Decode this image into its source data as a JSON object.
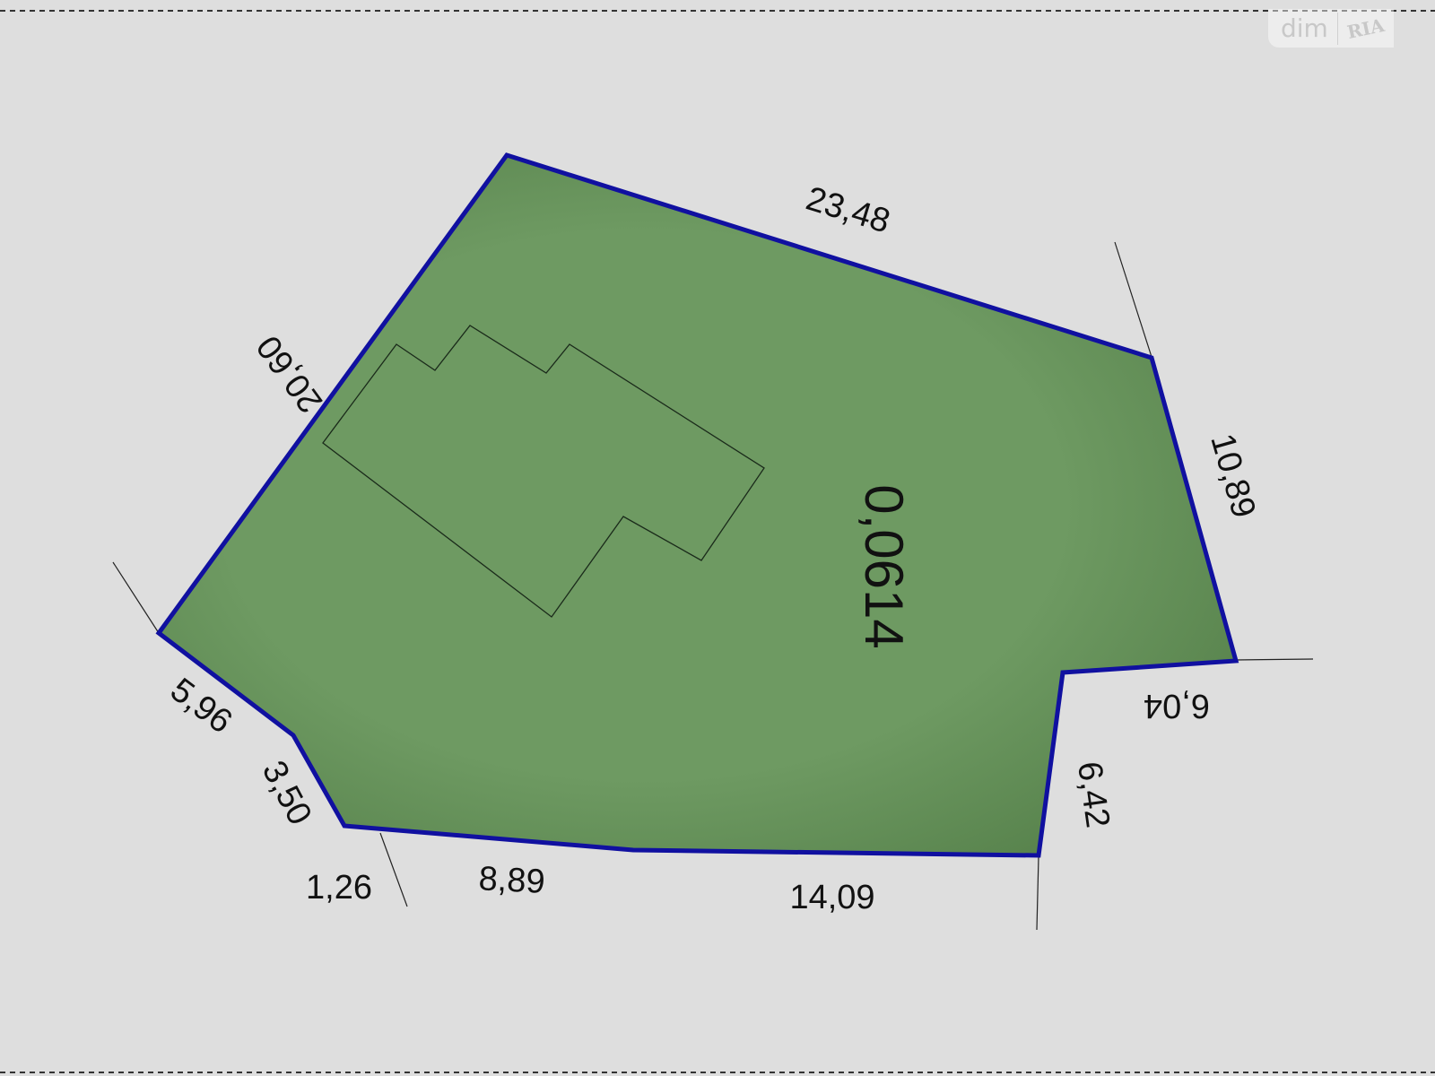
{
  "watermark": {
    "brand": "dim",
    "logo": "RIA"
  },
  "plot": {
    "area_label": "0,0614",
    "fill_color": "#6e9a62",
    "border_color": "#1010a0",
    "side_labels": [
      "23,48",
      "10,89",
      "6,04",
      "6,42",
      "14,09",
      "8,89",
      "1,26",
      "3,50",
      "5,96",
      "20,60"
    ]
  }
}
